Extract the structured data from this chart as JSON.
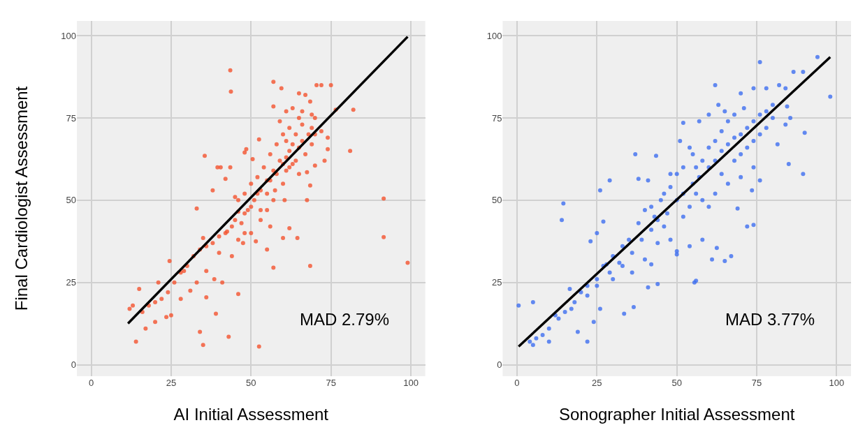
{
  "chart_data": [
    {
      "type": "scatter",
      "xlabel": "AI Initial Assessment",
      "ylabel": "Final Cardiologist Assessment",
      "annotations": [
        "MAD 2.79%"
      ],
      "xlim": [
        -4.5,
        104.5
      ],
      "ylim": [
        -3.5,
        104.5
      ],
      "xticks": [
        0,
        25,
        50,
        75,
        100
      ],
      "yticks": [
        0,
        25,
        50,
        75,
        100
      ],
      "grid": true,
      "marker": "circle",
      "series": [
        {
          "color": "#f4532e",
          "x": [
            43.5,
            43.7,
            35.5,
            91.5,
            91.5,
            99,
            68.5,
            57,
            82,
            81,
            76.5,
            75,
            72,
            70.5,
            57,
            59.5,
            52.5,
            35,
            43,
            14,
            34,
            17,
            39,
            25,
            23.5,
            46,
            36,
            28,
            41,
            38.5,
            36,
            42.5,
            35,
            33,
            38,
            39.5,
            40.5,
            43.5,
            42,
            48,
            48.5,
            50.5,
            52.5,
            60.5,
            68.5,
            67.5,
            60,
            62,
            64.5,
            56,
            55,
            50,
            51.5,
            47.5,
            57,
            61,
            63,
            65,
            67,
            68.5,
            66,
            69,
            70,
            72,
            74,
            74,
            73,
            70,
            67.5,
            65,
            62,
            60,
            57.5,
            55,
            53,
            52,
            50,
            48,
            46,
            45,
            44,
            42,
            40,
            38,
            36,
            34,
            32,
            30,
            28,
            26,
            24,
            22,
            20,
            18,
            16,
            12,
            15,
            21,
            24.5,
            13,
            20,
            29,
            31,
            33,
            40,
            44,
            46,
            48,
            53,
            55,
            57,
            56,
            58,
            60,
            61,
            62,
            63,
            64,
            65,
            66,
            67,
            68,
            69,
            70,
            62,
            60,
            58,
            56,
            54,
            52,
            50,
            48,
            46,
            45,
            47,
            49,
            51,
            53,
            55,
            57,
            59,
            61,
            63,
            64,
            66,
            59,
            61,
            65,
            69
          ],
          "values": [
            89.5,
            83,
            63.5,
            50.5,
            38.8,
            31,
            30,
            29.5,
            77.5,
            65,
            77.5,
            85,
            85,
            85,
            86,
            84,
            5.5,
            6,
            8.5,
            7,
            10,
            11,
            15.5,
            15,
            14.5,
            21.5,
            20.5,
            20,
            25,
            26,
            28.5,
            40.5,
            38.5,
            47.5,
            53,
            60,
            60,
            60,
            56.5,
            64.5,
            65.5,
            62.5,
            68.5,
            50,
            54.5,
            50,
            38.5,
            41.5,
            38.5,
            42,
            35,
            40,
            37.5,
            37,
            78.5,
            77,
            78,
            82.5,
            82,
            80,
            77,
            72,
            70,
            71,
            69,
            65.5,
            62,
            60.5,
            58.5,
            58,
            60,
            55,
            53,
            52,
            47,
            52,
            48,
            46,
            46.5,
            44,
            42,
            40,
            39,
            37,
            36,
            35,
            33,
            30,
            28,
            25,
            22,
            20,
            19,
            18,
            16,
            17,
            23,
            25,
            31.5,
            18,
            13,
            28.5,
            22.5,
            25,
            34,
            33,
            38,
            40,
            44,
            47,
            50,
            56,
            58,
            61,
            63,
            65,
            67,
            62,
            66,
            68,
            64,
            70,
            67,
            75,
            72,
            70,
            67,
            64,
            60,
            57,
            55,
            52,
            50,
            51,
            43,
            47,
            50,
            53,
            56,
            59,
            62,
            59,
            61,
            70,
            73,
            74,
            68,
            75,
            76
          ]
        },
        {
          "type": "line",
          "marker": "none",
          "color": "#000000",
          "x": [
            11.5,
            99
          ],
          "values": [
            12.5,
            99.7
          ]
        }
      ]
    },
    {
      "type": "scatter",
      "xlabel": "Sonographer Initial Assessment",
      "annotations": [
        "MAD 3.77%"
      ],
      "xlim": [
        -4.5,
        104.5
      ],
      "ylim": [
        -3.5,
        104.5
      ],
      "xticks": [
        0,
        25,
        50,
        75,
        100
      ],
      "yticks": [
        0,
        25,
        50,
        75,
        100
      ],
      "grid": true,
      "marker": "circle",
      "series": [
        {
          "color": "#3d6ef0",
          "x": [
            0.5,
            5,
            14.5,
            14,
            26,
            37,
            29,
            43.5,
            76,
            94,
            98,
            89.5,
            86.5,
            90,
            89.5,
            85,
            55.5,
            56,
            33.5,
            36.5,
            22,
            10,
            5,
            4,
            16.5,
            19,
            24,
            23,
            25,
            28,
            26,
            27,
            38,
            41,
            43,
            42,
            44,
            41,
            50,
            50,
            54,
            58,
            61,
            65,
            67,
            62.5,
            69,
            72,
            74,
            73.5,
            81.5,
            84,
            85.5,
            84.5,
            82,
            84,
            78,
            74,
            70,
            62,
            63,
            60,
            52,
            51,
            57,
            65,
            55,
            50,
            48,
            45,
            40,
            38,
            35,
            33,
            30,
            27,
            25,
            22,
            20,
            18,
            15,
            13,
            10,
            8,
            12,
            6,
            17,
            22,
            25,
            29,
            32,
            36,
            39,
            42,
            44,
            47,
            50,
            52,
            55,
            57,
            60,
            62,
            64,
            66,
            68,
            70,
            72,
            74,
            76,
            78,
            80,
            58,
            60,
            62,
            56,
            64,
            66,
            68,
            70,
            72,
            74,
            76,
            78,
            80,
            56,
            58,
            60,
            62,
            70,
            74,
            76,
            46,
            48,
            52,
            54,
            44,
            40,
            36,
            33,
            30,
            66,
            68,
            71,
            64,
            54,
            52,
            48,
            46,
            42
          ],
          "values": [
            18,
            19,
            49,
            44,
            53,
            64,
            56,
            63.5,
            92,
            93.5,
            81.5,
            89,
            89,
            70.5,
            58,
            61,
            25,
            25.5,
            15.5,
            17.5,
            7,
            7,
            6,
            7,
            23,
            10,
            13,
            37.5,
            40,
            30.5,
            17,
            43.5,
            56.5,
            56,
            45,
            30.5,
            24.5,
            23.5,
            33.5,
            34.5,
            36,
            38,
            32,
            31.5,
            33,
            35.5,
            47.5,
            42,
            42.5,
            53,
            67,
            73,
            75,
            78.5,
            85,
            84,
            84,
            84,
            82.5,
            85,
            79,
            76,
            73.5,
            68,
            74,
            77,
            64,
            58,
            54,
            50,
            47,
            43,
            38,
            36,
            33,
            30,
            26,
            24,
            22,
            19,
            16,
            14,
            11,
            9,
            15,
            8,
            17,
            21,
            24,
            28,
            31,
            34,
            38,
            41,
            44,
            46,
            50,
            52,
            55,
            57,
            60,
            62,
            65,
            67,
            69,
            70,
            72,
            74,
            76,
            77,
            79,
            62,
            66,
            68,
            60,
            58,
            55,
            62,
            64,
            66,
            68,
            70,
            72,
            75,
            52,
            50,
            48,
            52,
            57,
            60,
            56,
            42,
            38,
            45,
            48,
            37,
            32,
            28,
            30,
            26,
            74,
            76,
            78,
            71,
            66,
            60,
            58,
            52,
            48
          ]
        },
        {
          "type": "line",
          "marker": "none",
          "color": "#000000",
          "x": [
            0.5,
            98
          ],
          "values": [
            5.5,
            93.5
          ]
        }
      ]
    }
  ]
}
